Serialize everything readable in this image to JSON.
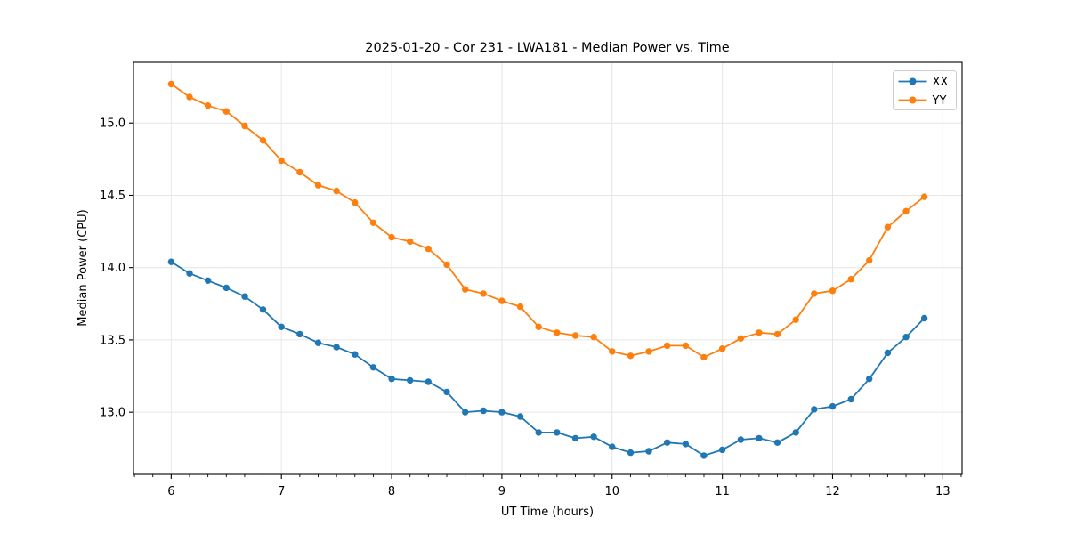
{
  "chart_data": {
    "type": "line",
    "title": "2025-01-20 - Cor 231 - LWA181 - Median Power vs. Time",
    "xlabel": "UT Time (hours)",
    "ylabel": "Median Power (CPU)",
    "xlim": [
      5.658,
      13.175
    ],
    "ylim": [
      12.57,
      15.42
    ],
    "xticks": [
      6,
      7,
      8,
      9,
      10,
      11,
      12,
      13
    ],
    "yticks": [
      13.0,
      13.5,
      14.0,
      14.5,
      15.0
    ],
    "x_minor_step": 0.1667,
    "grid": true,
    "grid_color": "#e6e6e6",
    "legend": {
      "position": "upper right"
    },
    "x": [
      6.0,
      6.167,
      6.333,
      6.5,
      6.667,
      6.833,
      7.0,
      7.167,
      7.333,
      7.5,
      7.667,
      7.833,
      8.0,
      8.167,
      8.333,
      8.5,
      8.667,
      8.833,
      9.0,
      9.167,
      9.333,
      9.5,
      9.667,
      9.833,
      10.0,
      10.167,
      10.333,
      10.5,
      10.667,
      10.833,
      11.0,
      11.167,
      11.333,
      11.5,
      11.667,
      11.833,
      12.0,
      12.167,
      12.333,
      12.5,
      12.667,
      12.833
    ],
    "series": [
      {
        "name": "XX",
        "color": "#1f77b4",
        "values": [
          14.04,
          13.96,
          13.91,
          13.86,
          13.8,
          13.71,
          13.59,
          13.54,
          13.48,
          13.45,
          13.4,
          13.31,
          13.23,
          13.22,
          13.21,
          13.14,
          13.0,
          13.01,
          13.0,
          12.97,
          12.86,
          12.86,
          12.82,
          12.83,
          12.76,
          12.72,
          12.73,
          12.79,
          12.78,
          12.7,
          12.74,
          12.81,
          12.82,
          12.79,
          12.86,
          13.02,
          13.04,
          13.09,
          13.23,
          13.41,
          13.52,
          13.65
        ]
      },
      {
        "name": "YY",
        "color": "#ff7f0e",
        "values": [
          15.27,
          15.18,
          15.12,
          15.08,
          14.98,
          14.88,
          14.74,
          14.66,
          14.57,
          14.53,
          14.45,
          14.31,
          14.21,
          14.18,
          14.13,
          14.02,
          13.85,
          13.82,
          13.77,
          13.73,
          13.59,
          13.55,
          13.53,
          13.52,
          13.42,
          13.39,
          13.42,
          13.46,
          13.46,
          13.38,
          13.44,
          13.51,
          13.55,
          13.54,
          13.64,
          13.82,
          13.84,
          13.92,
          14.05,
          14.28,
          14.39,
          14.49
        ]
      }
    ]
  }
}
